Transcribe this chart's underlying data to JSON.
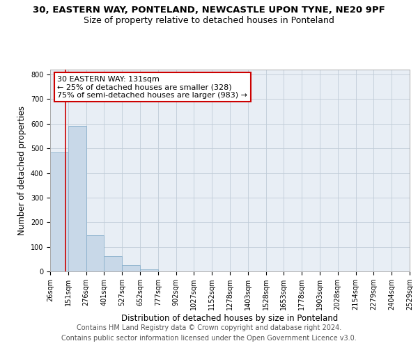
{
  "title": "30, EASTERN WAY, PONTELAND, NEWCASTLE UPON TYNE, NE20 9PF",
  "subtitle": "Size of property relative to detached houses in Ponteland",
  "xlabel": "Distribution of detached houses by size in Ponteland",
  "ylabel": "Number of detached properties",
  "bar_color": "#c8d8e8",
  "bar_edge_color": "#8ab0cc",
  "grid_color": "#c0ccd8",
  "background_color": "#e8eef5",
  "property_line_x": 131,
  "property_line_color": "#cc0000",
  "annotation_line1": "30 EASTERN WAY: 131sqm",
  "annotation_line2": "← 25% of detached houses are smaller (328)",
  "annotation_line3": "75% of semi-detached houses are larger (983) →",
  "annotation_box_color": "#cc0000",
  "bin_edges": [
    26,
    151,
    276,
    401,
    527,
    652,
    777,
    902,
    1027,
    1152,
    1278,
    1403,
    1528,
    1653,
    1778,
    1903,
    2028,
    2154,
    2279,
    2404,
    2529
  ],
  "bin_heights": [
    484,
    592,
    148,
    61,
    25,
    8,
    0,
    0,
    0,
    0,
    0,
    0,
    0,
    0,
    0,
    0,
    0,
    0,
    0,
    0
  ],
  "tick_labels": [
    "26sqm",
    "151sqm",
    "276sqm",
    "401sqm",
    "527sqm",
    "652sqm",
    "777sqm",
    "902sqm",
    "1027sqm",
    "1152sqm",
    "1278sqm",
    "1403sqm",
    "1528sqm",
    "1653sqm",
    "1778sqm",
    "1903sqm",
    "2028sqm",
    "2154sqm",
    "2279sqm",
    "2404sqm",
    "2529sqm"
  ],
  "ylim": [
    0,
    820
  ],
  "yticks": [
    0,
    100,
    200,
    300,
    400,
    500,
    600,
    700,
    800
  ],
  "footer1": "Contains HM Land Registry data © Crown copyright and database right 2024.",
  "footer2": "Contains public sector information licensed under the Open Government Licence v3.0.",
  "title_fontsize": 9.5,
  "subtitle_fontsize": 9,
  "axis_label_fontsize": 8.5,
  "tick_fontsize": 7,
  "annotation_fontsize": 8,
  "footer_fontsize": 7
}
